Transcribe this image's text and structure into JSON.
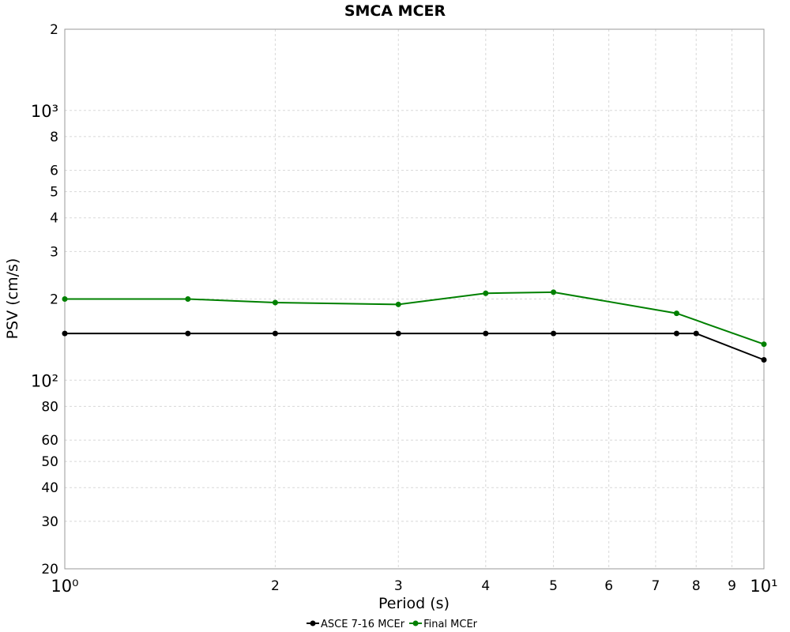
{
  "chart_data": {
    "type": "line",
    "title": "SMCA MCER",
    "x_label": "Period (s)",
    "y_label": "PSV (cm/s)",
    "x_log": true,
    "y_log": true,
    "grid": true,
    "legend": "bottom",
    "xlim": [
      1,
      10
    ],
    "ylim": [
      20,
      2000
    ],
    "xticks": [
      {
        "value": 1,
        "label": "10⁰"
      },
      2,
      3,
      4,
      5,
      6,
      7,
      8,
      9,
      {
        "value": 10,
        "label": "10¹"
      }
    ],
    "yticks": [
      20,
      30,
      40,
      50,
      60,
      80,
      {
        "value": 100,
        "label": "10²"
      },
      {
        "value": 200,
        "label": "2"
      },
      {
        "value": 300,
        "label": "3"
      },
      {
        "value": 400,
        "label": "4"
      },
      {
        "value": 500,
        "label": "5"
      },
      {
        "value": 600,
        "label": "6"
      },
      {
        "value": 800,
        "label": "8"
      },
      {
        "value": 1000,
        "label": "10³"
      },
      {
        "value": 2000,
        "label": "2"
      }
    ],
    "series": [
      {
        "name": "ASCE 7-16 MCEr",
        "color": "#000000",
        "x": [
          1,
          1.5,
          2,
          3,
          4,
          5,
          7.5,
          8,
          10
        ],
        "values": [
          149,
          149,
          149,
          149,
          149,
          149,
          149,
          149,
          119
        ]
      },
      {
        "name": "Final MCEr",
        "color": "#008000",
        "x": [
          1,
          1.5,
          2,
          3,
          4,
          5,
          7.5,
          10
        ],
        "values": [
          200,
          200,
          194,
          191,
          210,
          212,
          177,
          136
        ]
      }
    ]
  }
}
